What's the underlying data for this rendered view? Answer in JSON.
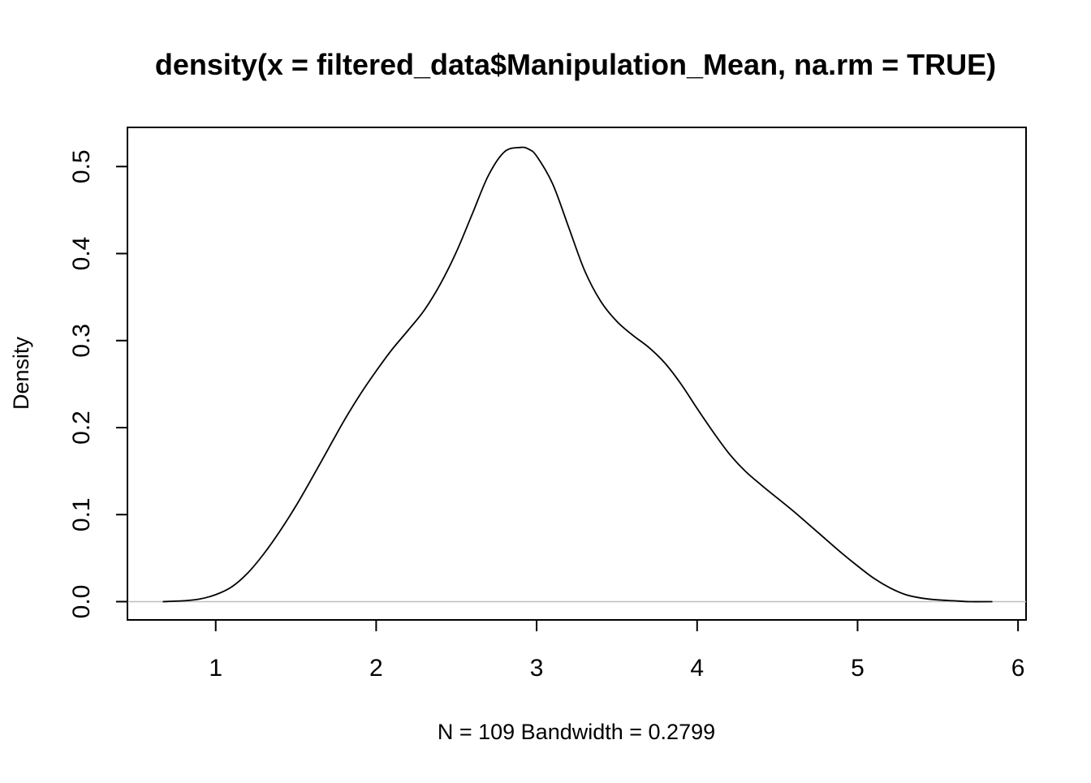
{
  "chart_data": {
    "type": "line",
    "title": "density(x = filtered_data$Manipulation_Mean, na.rm = TRUE)",
    "xlabel": "N = 109   Bandwidth = 0.2799",
    "ylabel": "Density",
    "xlim": [
      0.45,
      6.05
    ],
    "ylim": [
      -0.021,
      0.545
    ],
    "x_ticks": [
      1,
      2,
      3,
      4,
      5,
      6
    ],
    "x_tick_labels": [
      "1",
      "2",
      "3",
      "4",
      "5",
      "6"
    ],
    "y_ticks": [
      0.0,
      0.1,
      0.2,
      0.3,
      0.4,
      0.5
    ],
    "y_tick_labels": [
      "0.0",
      "0.1",
      "0.2",
      "0.3",
      "0.4",
      "0.5"
    ],
    "zero_line": 0,
    "grid": false,
    "series": [
      {
        "color": "#000000",
        "x": [
          0.67,
          0.8,
          0.9,
          1.0,
          1.1,
          1.2,
          1.3,
          1.4,
          1.5,
          1.6,
          1.7,
          1.8,
          1.9,
          2.0,
          2.1,
          2.2,
          2.3,
          2.4,
          2.5,
          2.6,
          2.7,
          2.8,
          2.9,
          2.95,
          3.0,
          3.1,
          3.2,
          3.3,
          3.4,
          3.5,
          3.6,
          3.7,
          3.8,
          3.9,
          4.0,
          4.1,
          4.2,
          4.3,
          4.4,
          4.5,
          4.6,
          4.7,
          4.8,
          4.9,
          5.0,
          5.1,
          5.2,
          5.3,
          5.4,
          5.5,
          5.6,
          5.7,
          5.84
        ],
        "values": [
          0.0,
          0.001,
          0.003,
          0.008,
          0.017,
          0.033,
          0.055,
          0.081,
          0.11,
          0.142,
          0.175,
          0.208,
          0.238,
          0.265,
          0.29,
          0.312,
          0.335,
          0.365,
          0.402,
          0.446,
          0.49,
          0.517,
          0.522,
          0.52,
          0.512,
          0.48,
          0.43,
          0.38,
          0.345,
          0.322,
          0.306,
          0.292,
          0.274,
          0.25,
          0.222,
          0.195,
          0.17,
          0.15,
          0.134,
          0.119,
          0.104,
          0.088,
          0.072,
          0.056,
          0.041,
          0.027,
          0.016,
          0.008,
          0.004,
          0.002,
          0.001,
          0.0,
          0.0
        ]
      }
    ]
  }
}
